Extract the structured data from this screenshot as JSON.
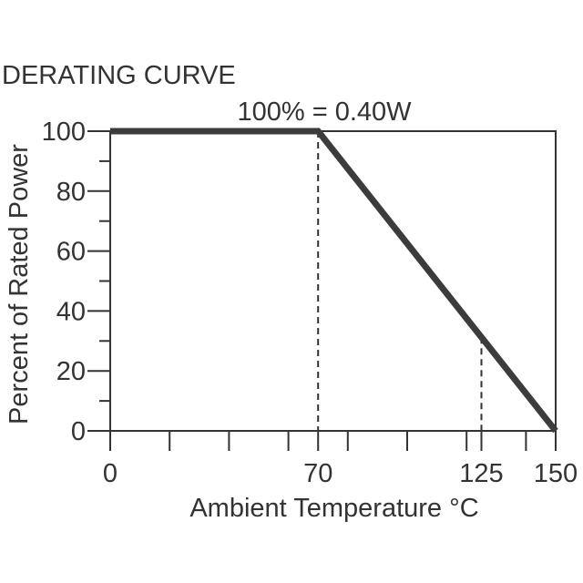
{
  "chart_data": {
    "type": "line",
    "title": "DERATING CURVE",
    "annotation": "100% = 0.40W",
    "xlabel": "Ambient Temperature °C",
    "ylabel": "Percent of Rated Power",
    "xlim": [
      0,
      150
    ],
    "ylim": [
      0,
      100
    ],
    "x_ticks_labeled": [
      0,
      70,
      125,
      150
    ],
    "x_tick_labels": [
      "0",
      "70",
      "125",
      "150"
    ],
    "x_ticks_minor": [
      20,
      40,
      60,
      80,
      100,
      120,
      140
    ],
    "y_ticks_labeled": [
      0,
      20,
      40,
      60,
      80,
      100
    ],
    "y_tick_labels": [
      "0",
      "20",
      "40",
      "60",
      "80",
      "100"
    ],
    "y_ticks_minor": [
      10,
      30,
      50,
      70,
      90
    ],
    "grid": false,
    "dashed_reference_x": [
      70,
      125
    ],
    "series": [
      {
        "x": [
          0,
          70,
          150
        ],
        "y": [
          100,
          100,
          0
        ]
      }
    ],
    "colors": {
      "curve": "#3c3c3c",
      "frame": "#333333",
      "text": "#333333"
    }
  }
}
